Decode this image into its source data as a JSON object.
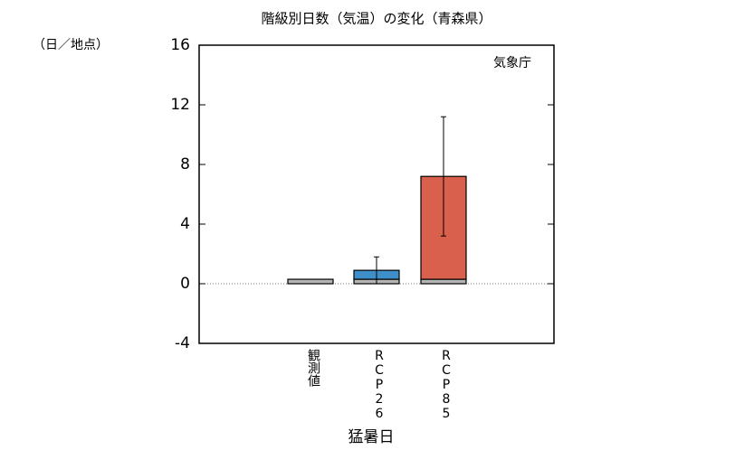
{
  "chart_data": {
    "type": "stacked_bar",
    "title": "階級別日数（気温）の変化（青森県）",
    "y_unit_label": "（日／地点）",
    "annotation": "気象庁",
    "xlabel": "猛暑日",
    "categories": [
      "観測値",
      "RCP26",
      "RCP85"
    ],
    "series": [
      {
        "color": "#b4b4b4",
        "values": [
          0.3,
          0.3,
          0.3
        ]
      },
      {
        "colors": [
          null,
          "#3e8fc7",
          "#d9604c"
        ],
        "values": [
          null,
          0.6,
          6.9
        ],
        "errors": [
          null,
          0.9,
          4.0
        ]
      }
    ],
    "ylim": [
      -4,
      16
    ],
    "yticks": [
      -4,
      0,
      4,
      8,
      12,
      16
    ]
  }
}
